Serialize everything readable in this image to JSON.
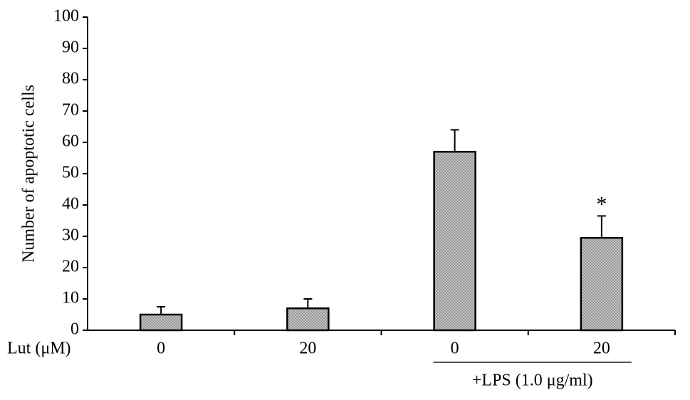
{
  "chart_data": {
    "type": "bar",
    "ylabel": "Number of apoptotic cells",
    "xlabel": "Lut (μM)",
    "categories": [
      "0",
      "20",
      "0",
      "20"
    ],
    "values": [
      5,
      7,
      57,
      29.5
    ],
    "errors": [
      2.5,
      3,
      7,
      7
    ],
    "significance": [
      null,
      null,
      null,
      "*"
    ],
    "groups": [
      {
        "label": "+LPS (1.0 μg/ml)",
        "categories": [
          2,
          3
        ]
      }
    ],
    "color": "#c4c4c4",
    "ylim": [
      0,
      100
    ],
    "yticks": [
      0,
      10,
      20,
      30,
      40,
      50,
      60,
      70,
      80,
      90,
      100
    ]
  }
}
